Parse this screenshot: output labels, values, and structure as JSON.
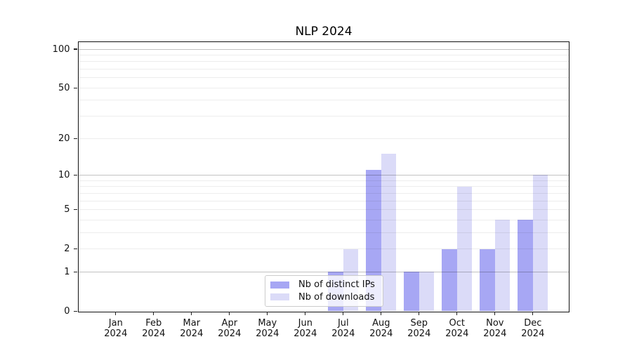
{
  "figure": {
    "title": "NLP 2024"
  },
  "chart_data": {
    "type": "bar",
    "title": "NLP 2024",
    "categories": [
      "Jan",
      "Feb",
      "Mar",
      "Apr",
      "May",
      "Jun",
      "Jul",
      "Aug",
      "Sep",
      "Oct",
      "Nov",
      "Dec"
    ],
    "year_label": "2024",
    "series": [
      {
        "name": "Nb of distinct IPs",
        "color": "#a7a7f4",
        "values": [
          0,
          0,
          0,
          0,
          0,
          0,
          1,
          11,
          1,
          2,
          2,
          4
        ]
      },
      {
        "name": "Nb of downloads",
        "color": "#dbdbf8",
        "values": [
          0,
          0,
          0,
          0,
          0,
          0,
          2,
          15,
          1,
          8,
          4,
          10
        ]
      }
    ],
    "y_axis": {
      "scale": "log1p",
      "ticks": [
        0,
        1,
        2,
        5,
        10,
        20,
        50,
        100
      ],
      "major_gridlines": [
        1,
        10,
        100
      ],
      "minor_gridlines": [
        2,
        3,
        4,
        5,
        6,
        7,
        8,
        9,
        20,
        30,
        40,
        50,
        60,
        70,
        80,
        90
      ],
      "ylim": [
        0,
        114
      ]
    },
    "xlabel": "",
    "ylabel": "",
    "grid": true,
    "legend_position": "lower center"
  }
}
